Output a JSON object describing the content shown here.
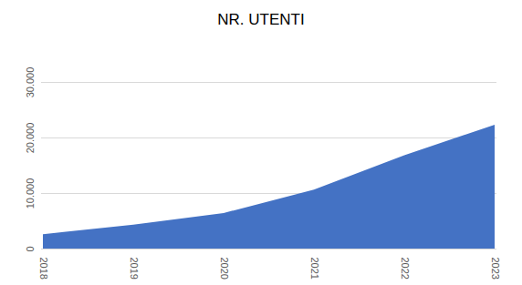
{
  "chart_data": {
    "type": "area",
    "title": "NR. UTENTI",
    "categories": [
      "2018",
      "2019",
      "2020",
      "2021",
      "2022",
      "2023"
    ],
    "values": [
      2600,
      4300,
      6400,
      10600,
      16800,
      22300
    ],
    "color": "#4472c4",
    "ylim": [
      0,
      30000
    ],
    "yticks": [
      0,
      {
        "value": 10000,
        "label": "10.000"
      },
      {
        "value": 20000,
        "label": "20.000"
      },
      {
        "value": 30000,
        "label": "30.000"
      }
    ],
    "grid": true
  }
}
